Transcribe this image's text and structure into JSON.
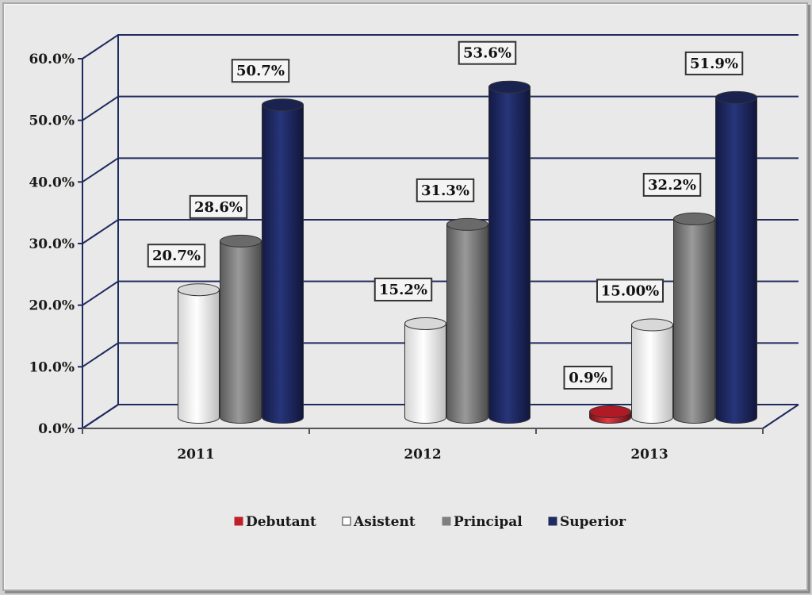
{
  "chart_data": {
    "type": "bar",
    "categories": [
      "2011",
      "2012",
      "2013"
    ],
    "series": [
      {
        "name": "Debutant",
        "color": "#c0202a",
        "values": [
          null,
          null,
          0.9
        ],
        "labels": [
          "",
          "",
          "0.9%"
        ]
      },
      {
        "name": "Asistent",
        "color": "#ffffff",
        "values": [
          20.7,
          15.2,
          15.0
        ],
        "labels": [
          "20.7%",
          "15.2%",
          "15.00%"
        ]
      },
      {
        "name": "Principal",
        "color": "#7f7f7f",
        "values": [
          28.6,
          31.3,
          32.2
        ],
        "labels": [
          "28.6%",
          "31.3%",
          "32.2%"
        ]
      },
      {
        "name": "Superior",
        "color": "#1f2a5e",
        "values": [
          50.7,
          53.6,
          51.9
        ],
        "labels": [
          "50.7%",
          "53.6%",
          "51.9%"
        ]
      }
    ],
    "ylim": [
      0,
      60
    ],
    "yticks": [
      0,
      10,
      20,
      30,
      40,
      50,
      60
    ],
    "ytick_labels": [
      "0.0%",
      "10.0%",
      "20.0%",
      "30.0%",
      "40.0%",
      "50.0%",
      "60.0%"
    ],
    "grid": true,
    "legend_position": "bottom",
    "style": "3d-cylinder"
  }
}
